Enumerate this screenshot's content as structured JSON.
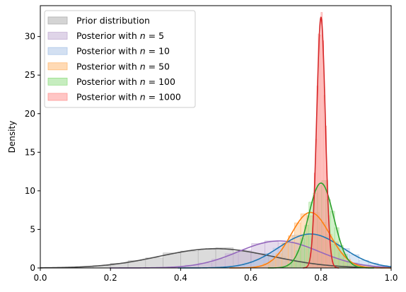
{
  "chart_data": {
    "type": "area",
    "title": "",
    "xlabel": "",
    "ylabel": "Density",
    "xlim": [
      0.0,
      1.0
    ],
    "ylim": [
      0,
      34
    ],
    "x_ticks": [
      "0.0",
      "0.2",
      "0.4",
      "0.6",
      "0.8",
      "1.0"
    ],
    "y_ticks": [
      "0",
      "5",
      "10",
      "15",
      "20",
      "25",
      "30"
    ],
    "legend_position": "top-left",
    "grid": false,
    "series": [
      {
        "name": "Prior distribution",
        "legend_prefix": "Prior distribution",
        "legend_n": "",
        "color": "#4d4d4d",
        "fill": "#b0b0b0",
        "mean": 0.5,
        "sd": 0.16,
        "peak": 2.5,
        "xmin": 0.05,
        "xmax": 0.95
      },
      {
        "name": "Posterior with n = 5",
        "legend_prefix": "Posterior with ",
        "legend_n": "5",
        "color": "#9467bd",
        "fill": "#c5b0d5",
        "mean": 0.68,
        "sd": 0.115,
        "peak": 3.5,
        "xmin": 0.3,
        "xmax": 0.98
      },
      {
        "name": "Posterior with n = 10",
        "legend_prefix": "Posterior with ",
        "legend_n": "10",
        "color": "#1f77b4",
        "fill": "#aec7e8",
        "mean": 0.77,
        "sd": 0.09,
        "peak": 4.4,
        "xmin": 0.5,
        "xmax": 0.99
      },
      {
        "name": "Posterior with n = 50",
        "legend_prefix": "Posterior with ",
        "legend_n": "50",
        "color": "#ff7f0e",
        "fill": "#ffbb78",
        "mean": 0.77,
        "sd": 0.055,
        "peak": 7.2,
        "xmin": 0.6,
        "xmax": 0.92
      },
      {
        "name": "Posterior with n = 100",
        "legend_prefix": "Posterior with ",
        "legend_n": "100",
        "color": "#2ca02c",
        "fill": "#98df8a",
        "mean": 0.8,
        "sd": 0.036,
        "peak": 11.0,
        "xmin": 0.68,
        "xmax": 0.9
      },
      {
        "name": "Posterior with n = 1000",
        "legend_prefix": "Posterior with ",
        "legend_n": "1000",
        "color": "#d62728",
        "fill": "#ff9896",
        "mean": 0.8,
        "sd": 0.0122,
        "peak": 32.5,
        "xmin": 0.765,
        "xmax": 0.835
      }
    ]
  }
}
